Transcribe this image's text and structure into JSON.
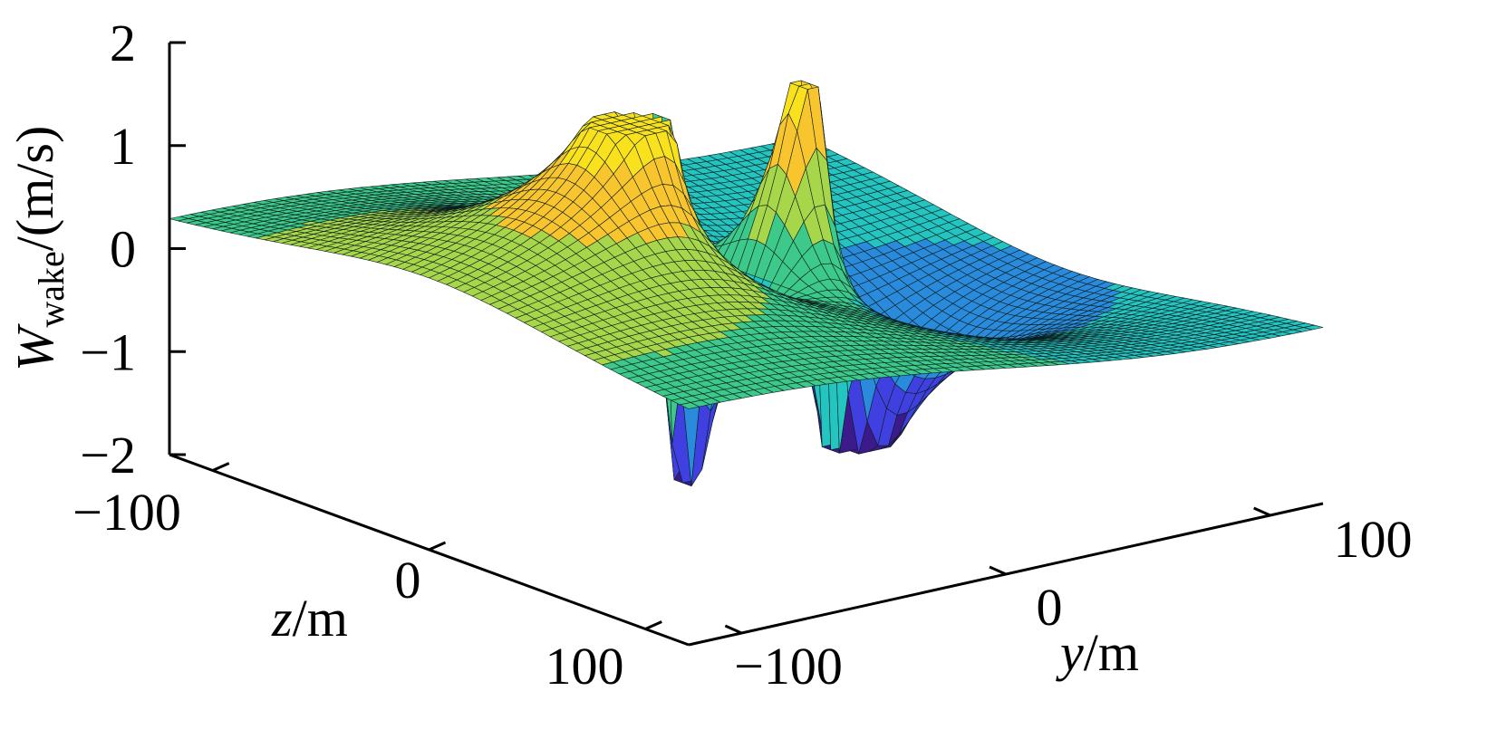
{
  "chart_data": {
    "type": "surface",
    "xlabel": {
      "var": "y",
      "unit": "/m"
    },
    "ylabel": {
      "var": "z",
      "unit": "/m"
    },
    "zlabel": {
      "var": "W",
      "sub": "wake",
      "unit": "/(m/s)"
    },
    "xlim": [
      -120,
      120
    ],
    "ylim": [
      -120,
      120
    ],
    "zlim": [
      -2,
      2
    ],
    "x_ticks": [
      -100,
      0,
      100
    ],
    "x_tick_labels": [
      "−100",
      "0",
      "100"
    ],
    "y_ticks": [
      -100,
      0,
      100
    ],
    "y_tick_labels": [
      "−100",
      "0",
      "100"
    ],
    "z_ticks": [
      -2,
      -1,
      0,
      1,
      2
    ],
    "z_tick_labels": [
      "−2",
      "−1",
      "0",
      "1",
      "2"
    ],
    "colormap": [
      "#3d1a8c",
      "#4040e0",
      "#2a8bdc",
      "#24c4c0",
      "#3cc98a",
      "#a8d64a",
      "#f9c52e",
      "#f9e11e"
    ],
    "grid": true,
    "vortices": [
      {
        "y": -30,
        "z": 0,
        "peak": 1.2
      },
      {
        "y": 30,
        "z": 0,
        "peak": -1.2
      }
    ],
    "peak_value_range": [
      -1.9,
      1.7
    ]
  }
}
